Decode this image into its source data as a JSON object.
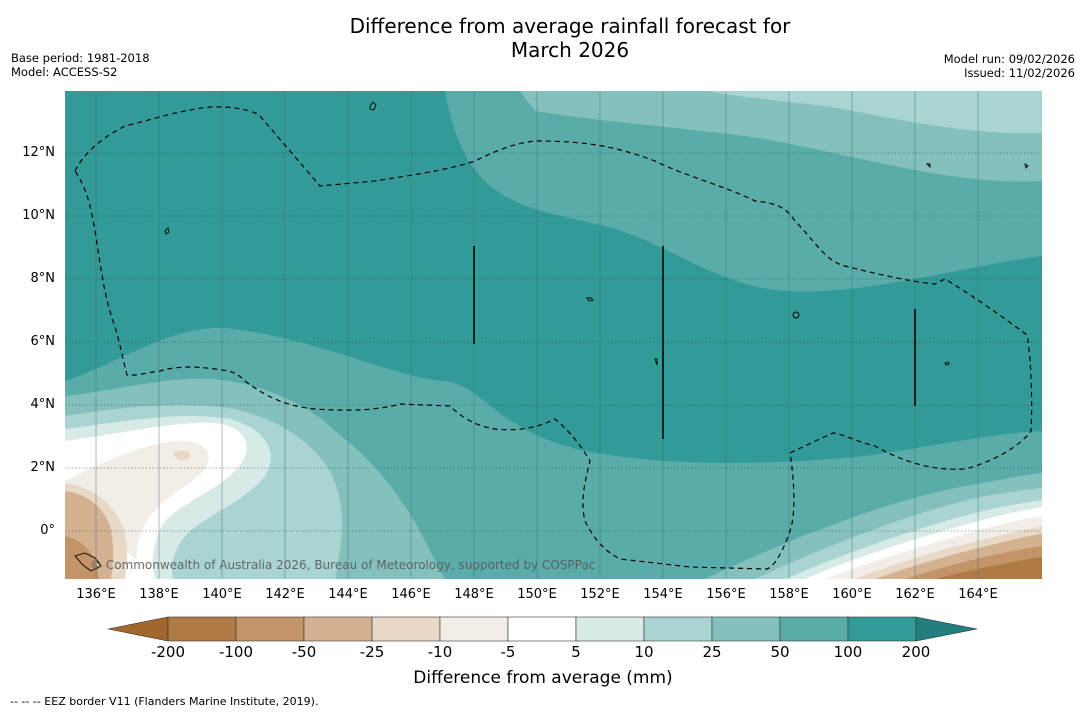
{
  "title_line1": "Difference from average rainfall forecast for",
  "title_line2": "March 2026",
  "base_period": "Base period: 1981-2018",
  "model": "Model: ACCESS-S2",
  "model_run": "Model run: 09/02/2026",
  "issued": "Issued: 11/02/2026",
  "y_ticks": [
    "12°N",
    "10°N",
    "8°N",
    "6°N",
    "4°N",
    "2°N",
    "0°"
  ],
  "x_ticks": [
    "136°E",
    "138°E",
    "140°E",
    "142°E",
    "144°E",
    "146°E",
    "148°E",
    "150°E",
    "152°E",
    "154°E",
    "156°E",
    "158°E",
    "160°E",
    "162°E",
    "164°E"
  ],
  "copyright": "© Commonwealth of Australia 2026, Bureau of Meteorology, supported by COSPPac",
  "colorbar": {
    "labels": [
      "-200",
      "-100",
      "-50",
      "-25",
      "-10",
      "-5",
      "5",
      "10",
      "25",
      "50",
      "100",
      "200"
    ],
    "colors": [
      "#a0672f",
      "#b07a45",
      "#c39467",
      "#d4b291",
      "#e8d8c6",
      "#f3ede7",
      "#ffffff",
      "#d7eae8",
      "#a9d4d1",
      "#84c1bd",
      "#5aacaa",
      "#329a97",
      "#237f7d"
    ],
    "title": "Difference from average (mm)"
  },
  "footnote": "--  --  -- EEZ border V11 (Flanders Marine Institute, 2019)."
}
